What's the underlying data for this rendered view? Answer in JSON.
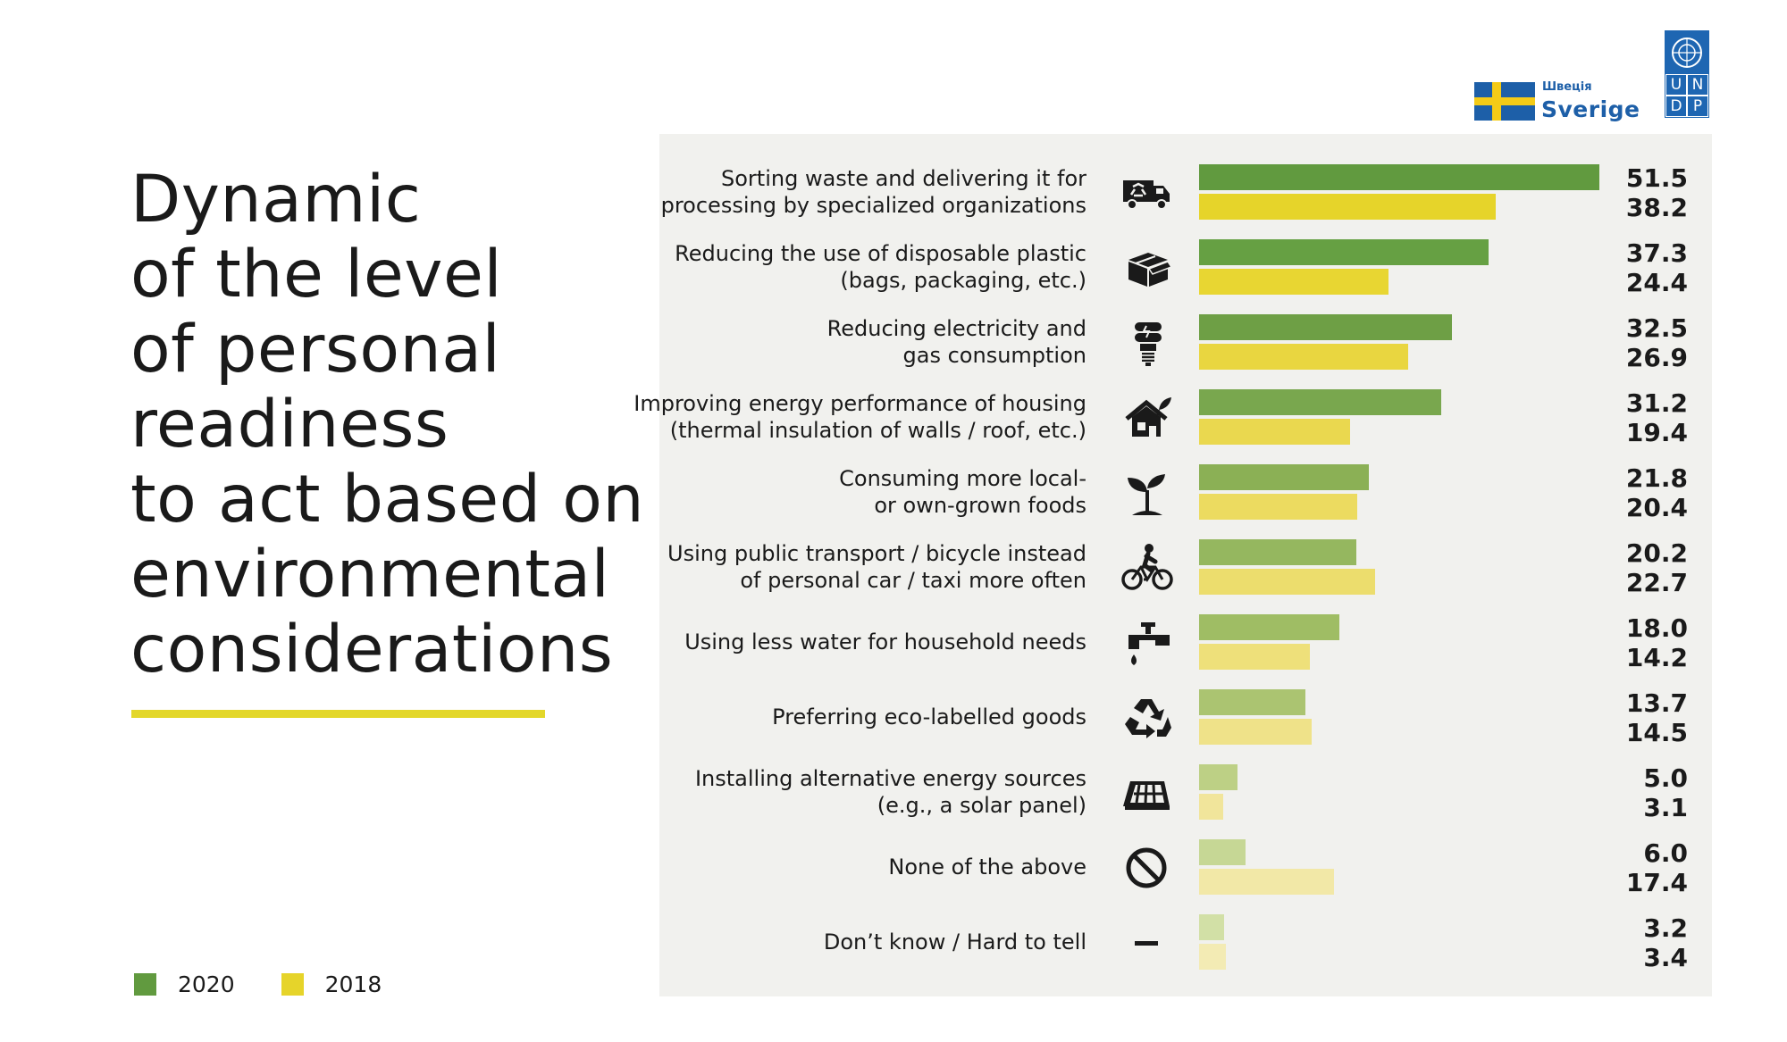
{
  "title_lines": [
    "Dynamic",
    "of the level",
    "of personal",
    "readiness",
    "to act based on",
    "environmental",
    "considerations"
  ],
  "logos": {
    "sweden_small": "Швеція",
    "sweden_big": "Sverige",
    "undp_letters": [
      "U",
      "N",
      "D",
      "P"
    ]
  },
  "colors": {
    "rule": "#e3d72a",
    "legend_2020": "#619a3f",
    "legend_2018": "#e6d42a",
    "panel": "#f1f1ee"
  },
  "legend": [
    {
      "label": "2020",
      "color": "#619a3f"
    },
    {
      "label": "2018",
      "color": "#e6d42a"
    }
  ],
  "chart_data": {
    "type": "bar",
    "orientation": "horizontal",
    "max": 51.5,
    "categories": [
      {
        "label": [
          "Sorting waste and delivering it for",
          "processing by specialized organizations"
        ],
        "icon": "garbage-truck-icon"
      },
      {
        "label": [
          "Reducing the use of disposable plastic",
          "(bags, packaging, etc.)"
        ],
        "icon": "box-icon"
      },
      {
        "label": [
          "Reducing electricity and",
          "gas consumption"
        ],
        "icon": "energy-saving-bulb-icon"
      },
      {
        "label": [
          "Improving energy performance of housing",
          "(thermal insulation of walls / roof, etc.)"
        ],
        "icon": "eco-house-icon"
      },
      {
        "label": [
          "Consuming more local-",
          "or own-grown foods"
        ],
        "icon": "sprout-icon"
      },
      {
        "label": [
          "Using public transport / bicycle instead",
          "of personal car / taxi more often"
        ],
        "icon": "cyclist-icon"
      },
      {
        "label": [
          "Using less water for household needs"
        ],
        "icon": "water-tap-icon"
      },
      {
        "label": [
          "Preferring eco-labelled goods"
        ],
        "icon": "recycle-icon"
      },
      {
        "label": [
          "Installing alternative energy sources",
          "(e.g., a solar panel)"
        ],
        "icon": "solar-panel-icon"
      },
      {
        "label": [
          "None of the above"
        ],
        "icon": "prohibited-icon"
      },
      {
        "label": [
          "Don’t know / Hard to tell"
        ],
        "icon": "dash-icon"
      }
    ],
    "series": [
      {
        "name": "2020",
        "values": [
          51.5,
          37.3,
          32.5,
          31.2,
          21.8,
          20.2,
          18.0,
          13.7,
          5.0,
          6.0,
          3.2
        ],
        "display": [
          "51.5",
          "37.3",
          "32.5",
          "31.2",
          "21.8",
          "20.2",
          "18.0",
          "13.7",
          "5.0",
          "6.0",
          "3.2"
        ],
        "colors": [
          "#619a3f",
          "#66a043",
          "#6e9f45",
          "#79a74e",
          "#8bb055",
          "#95b75f",
          "#9fbd64",
          "#abc471",
          "#bdd085",
          "#c6d795",
          "#d2e0a6"
        ]
      },
      {
        "name": "2018",
        "values": [
          38.2,
          24.4,
          26.9,
          19.4,
          20.4,
          22.7,
          14.2,
          14.5,
          3.1,
          17.4,
          3.4
        ],
        "display": [
          "38.2",
          "24.4",
          "26.9",
          "19.4",
          "20.4",
          "22.7",
          "14.2",
          "14.5",
          "3.1",
          "17.4",
          "3.4"
        ],
        "colors": [
          "#e6d42a",
          "#e8d632",
          "#e9d640",
          "#ead84f",
          "#ecdb60",
          "#ecdd6d",
          "#eee07a",
          "#efe289",
          "#f1e59b",
          "#f2e8a7",
          "#f3ebb4"
        ]
      }
    ]
  }
}
